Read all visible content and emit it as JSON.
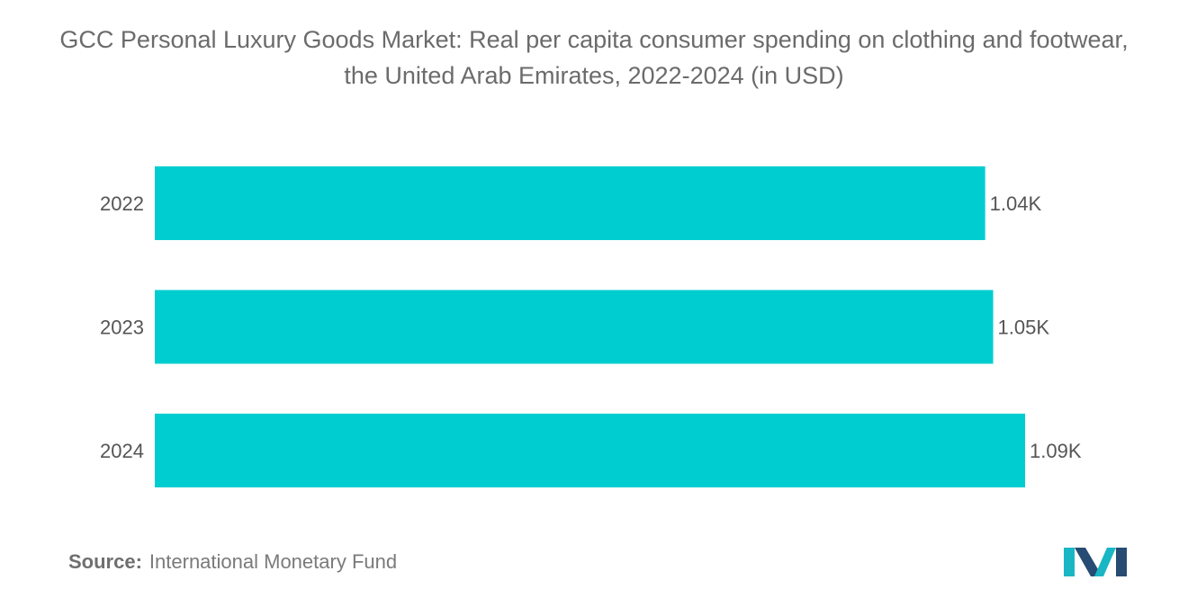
{
  "title": "GCC Personal Luxury Goods Market: Real per capita consumer spending on clothing and footwear, the United Arab Emirates, 2022-2024 (in USD)",
  "source": {
    "label": "Source:",
    "text": "International Monetary Fund"
  },
  "logo": {
    "icon": "mordor-intelligence-logo-icon"
  },
  "colors": {
    "bar": "#00CDD0",
    "logo_teal": "#1AB6C4",
    "logo_navy": "#274B73"
  },
  "chart_data": {
    "type": "bar",
    "orientation": "horizontal",
    "title": "GCC Personal Luxury Goods Market: Real per capita consumer spending on clothing and footwear, the United Arab Emirates, 2022-2024 (in USD)",
    "categories": [
      "2022",
      "2023",
      "2024"
    ],
    "values": [
      1040,
      1050,
      1090
    ],
    "value_labels": [
      "1.04K",
      "1.05K",
      "1.09K"
    ],
    "xlim": [
      0,
      1090
    ],
    "grid": false,
    "legend": "none"
  }
}
